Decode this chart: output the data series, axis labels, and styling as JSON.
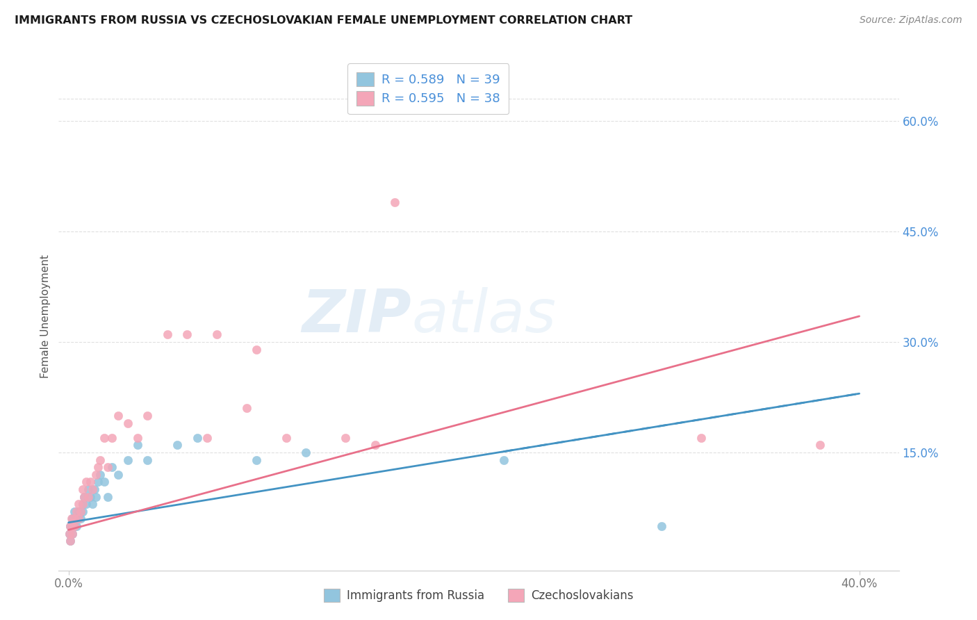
{
  "title": "IMMIGRANTS FROM RUSSIA VS CZECHOSLOVAKIAN FEMALE UNEMPLOYMENT CORRELATION CHART",
  "source": "Source: ZipAtlas.com",
  "ylabel": "Female Unemployment",
  "ytick_labels": [
    "60.0%",
    "45.0%",
    "30.0%",
    "15.0%"
  ],
  "ytick_values": [
    0.6,
    0.45,
    0.3,
    0.15
  ],
  "xtick_values": [
    0.0,
    0.4
  ],
  "xtick_labels": [
    "0.0%",
    "40.0%"
  ],
  "xlim": [
    -0.005,
    0.42
  ],
  "ylim": [
    -0.01,
    0.68
  ],
  "legend_label1": "Immigrants from Russia",
  "legend_label2": "Czechoslovakians",
  "color_blue": "#92c5de",
  "color_pink": "#f4a6b8",
  "color_blue_line": "#4393c3",
  "color_pink_line": "#e8708a",
  "watermark_zip": "ZIP",
  "watermark_atlas": "atlas",
  "russia_x": [
    0.0005,
    0.001,
    0.001,
    0.0015,
    0.002,
    0.002,
    0.0025,
    0.003,
    0.003,
    0.004,
    0.004,
    0.005,
    0.005,
    0.006,
    0.006,
    0.007,
    0.007,
    0.008,
    0.009,
    0.01,
    0.011,
    0.012,
    0.013,
    0.014,
    0.015,
    0.016,
    0.018,
    0.02,
    0.022,
    0.025,
    0.03,
    0.035,
    0.04,
    0.055,
    0.065,
    0.095,
    0.12,
    0.22,
    0.3
  ],
  "russia_y": [
    0.04,
    0.05,
    0.03,
    0.05,
    0.04,
    0.06,
    0.05,
    0.05,
    0.07,
    0.06,
    0.05,
    0.07,
    0.06,
    0.07,
    0.06,
    0.08,
    0.07,
    0.09,
    0.08,
    0.1,
    0.09,
    0.08,
    0.1,
    0.09,
    0.11,
    0.12,
    0.11,
    0.09,
    0.13,
    0.12,
    0.14,
    0.16,
    0.14,
    0.16,
    0.17,
    0.14,
    0.15,
    0.14,
    0.05
  ],
  "czech_x": [
    0.0005,
    0.001,
    0.001,
    0.0015,
    0.002,
    0.002,
    0.003,
    0.003,
    0.004,
    0.005,
    0.005,
    0.006,
    0.007,
    0.007,
    0.008,
    0.009,
    0.01,
    0.011,
    0.012,
    0.014,
    0.015,
    0.016,
    0.018,
    0.02,
    0.022,
    0.025,
    0.03,
    0.035,
    0.04,
    0.05,
    0.06,
    0.07,
    0.09,
    0.11,
    0.14,
    0.155,
    0.32,
    0.38
  ],
  "czech_y": [
    0.04,
    0.05,
    0.03,
    0.06,
    0.05,
    0.04,
    0.06,
    0.05,
    0.07,
    0.06,
    0.08,
    0.07,
    0.08,
    0.1,
    0.09,
    0.11,
    0.09,
    0.11,
    0.1,
    0.12,
    0.13,
    0.14,
    0.17,
    0.13,
    0.17,
    0.2,
    0.19,
    0.17,
    0.2,
    0.31,
    0.31,
    0.17,
    0.21,
    0.17,
    0.17,
    0.16,
    0.17,
    0.16
  ],
  "czech_outlier_x": [
    0.165
  ],
  "czech_outlier_y": [
    0.49
  ],
  "czech_high1_x": [
    0.075
  ],
  "czech_high1_y": [
    0.31
  ],
  "czech_high2_x": [
    0.095
  ],
  "czech_high2_y": [
    0.29
  ],
  "russia_trendline_x": [
    0.0,
    0.4
  ],
  "russia_trendline_y": [
    0.055,
    0.23
  ],
  "czech_trendline_x": [
    0.0,
    0.4
  ],
  "czech_trendline_y": [
    0.045,
    0.335
  ],
  "grid_color": "#e0e0e0",
  "spine_color": "#cccccc",
  "title_fontsize": 11.5,
  "source_fontsize": 10,
  "tick_label_color": "#4a90d9",
  "axis_label_color": "#555555"
}
